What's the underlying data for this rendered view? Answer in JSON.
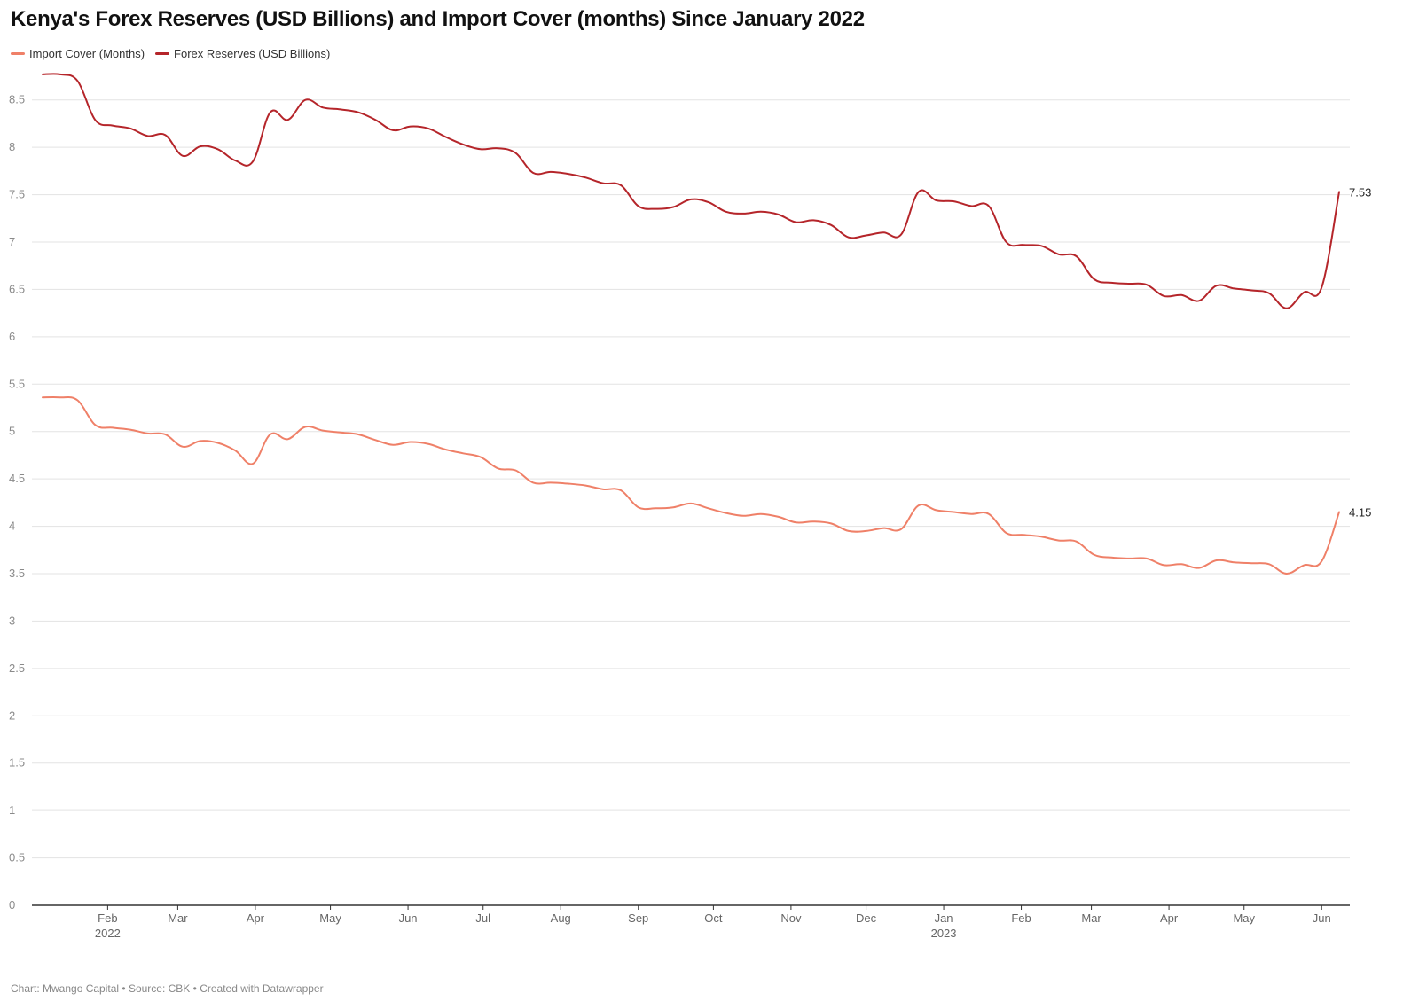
{
  "title": "Kenya's Forex Reserves (USD Billions) and Import Cover (months) Since January 2022",
  "footer": {
    "chart_by": "Chart: Mwango Capital",
    "source": "Source: CBK",
    "created_with": "Created with Datawrapper",
    "separator": " • "
  },
  "colors": {
    "import_cover": "#ef8068",
    "forex_reserves": "#b5252a",
    "grid": "#e3e3e3",
    "axis": "#333333"
  },
  "chart_data": {
    "type": "line",
    "title": "Kenya's Forex Reserves (USD Billions) and Import Cover (months) Since January 2022",
    "xlabel": "",
    "ylabel": "",
    "xlim": [
      "2022-01-06",
      "2023-06-15"
    ],
    "ylim": [
      0,
      8.75
    ],
    "yticks": [
      0,
      0.5,
      1,
      1.5,
      2,
      2.5,
      3,
      3.5,
      4,
      4.5,
      5,
      5.5,
      6,
      6.5,
      7,
      7.5,
      8,
      8.5
    ],
    "xticks": [
      {
        "date": "2022-02-01",
        "label": "Feb",
        "sublabel": "2022"
      },
      {
        "date": "2022-03-01",
        "label": "Mar",
        "sublabel": ""
      },
      {
        "date": "2022-04-01",
        "label": "Apr",
        "sublabel": ""
      },
      {
        "date": "2022-05-01",
        "label": "May",
        "sublabel": ""
      },
      {
        "date": "2022-06-01",
        "label": "Jun",
        "sublabel": ""
      },
      {
        "date": "2022-07-01",
        "label": "Jul",
        "sublabel": ""
      },
      {
        "date": "2022-08-01",
        "label": "Aug",
        "sublabel": ""
      },
      {
        "date": "2022-09-01",
        "label": "Sep",
        "sublabel": ""
      },
      {
        "date": "2022-10-01",
        "label": "Oct",
        "sublabel": ""
      },
      {
        "date": "2022-11-01",
        "label": "Nov",
        "sublabel": ""
      },
      {
        "date": "2022-12-01",
        "label": "Dec",
        "sublabel": ""
      },
      {
        "date": "2023-01-01",
        "label": "Jan",
        "sublabel": "2023"
      },
      {
        "date": "2023-02-01",
        "label": "Feb",
        "sublabel": ""
      },
      {
        "date": "2023-03-01",
        "label": "Mar",
        "sublabel": ""
      },
      {
        "date": "2023-04-01",
        "label": "Apr",
        "sublabel": ""
      },
      {
        "date": "2023-05-01",
        "label": "May",
        "sublabel": ""
      },
      {
        "date": "2023-06-01",
        "label": "Jun",
        "sublabel": ""
      }
    ],
    "grid": true,
    "legend": "top-left",
    "series": [
      {
        "name": "Import Cover (Months)",
        "color": "#ef8068",
        "end_label": "4.15",
        "x": [
          "2022-01-06",
          "2022-01-13",
          "2022-01-20",
          "2022-01-27",
          "2022-02-03",
          "2022-02-10",
          "2022-02-17",
          "2022-02-24",
          "2022-03-03",
          "2022-03-10",
          "2022-03-17",
          "2022-03-24",
          "2022-03-31",
          "2022-04-07",
          "2022-04-14",
          "2022-04-21",
          "2022-04-28",
          "2022-05-05",
          "2022-05-12",
          "2022-05-19",
          "2022-05-26",
          "2022-06-02",
          "2022-06-09",
          "2022-06-16",
          "2022-06-23",
          "2022-06-30",
          "2022-07-07",
          "2022-07-14",
          "2022-07-21",
          "2022-07-28",
          "2022-08-04",
          "2022-08-11",
          "2022-08-18",
          "2022-08-25",
          "2022-09-01",
          "2022-09-08",
          "2022-09-15",
          "2022-09-22",
          "2022-09-29",
          "2022-10-06",
          "2022-10-13",
          "2022-10-20",
          "2022-10-27",
          "2022-11-03",
          "2022-11-10",
          "2022-11-17",
          "2022-11-24",
          "2022-12-01",
          "2022-12-08",
          "2022-12-15",
          "2022-12-22",
          "2022-12-29",
          "2023-01-05",
          "2023-01-12",
          "2023-01-19",
          "2023-01-26",
          "2023-02-02",
          "2023-02-09",
          "2023-02-16",
          "2023-02-23",
          "2023-03-02",
          "2023-03-09",
          "2023-03-16",
          "2023-03-23",
          "2023-03-30",
          "2023-04-06",
          "2023-04-13",
          "2023-04-20",
          "2023-04-27",
          "2023-05-04",
          "2023-05-11",
          "2023-05-18",
          "2023-05-25",
          "2023-06-01",
          "2023-06-08"
        ],
        "values": [
          5.36,
          5.36,
          5.33,
          5.07,
          5.04,
          5.02,
          4.98,
          4.97,
          4.84,
          4.9,
          4.88,
          4.8,
          4.66,
          4.97,
          4.92,
          5.05,
          5.01,
          4.99,
          4.97,
          4.91,
          4.86,
          4.89,
          4.87,
          4.81,
          4.77,
          4.73,
          4.61,
          4.59,
          4.46,
          4.46,
          4.45,
          4.43,
          4.39,
          4.38,
          4.2,
          4.19,
          4.2,
          4.24,
          4.19,
          4.14,
          4.11,
          4.13,
          4.1,
          4.04,
          4.05,
          4.03,
          3.95,
          3.95,
          3.98,
          3.97,
          4.22,
          4.17,
          4.15,
          4.13,
          4.13,
          3.93,
          3.91,
          3.89,
          3.85,
          3.84,
          3.7,
          3.67,
          3.66,
          3.66,
          3.59,
          3.6,
          3.56,
          3.64,
          3.62,
          3.61,
          3.6,
          3.5,
          3.59,
          3.63,
          4.15
        ]
      },
      {
        "name": "Forex Reserves (USD Billions)",
        "color": "#b5252a",
        "end_label": "7.53",
        "x": [
          "2022-01-06",
          "2022-01-13",
          "2022-01-20",
          "2022-01-27",
          "2022-02-03",
          "2022-02-10",
          "2022-02-17",
          "2022-02-24",
          "2022-03-03",
          "2022-03-10",
          "2022-03-17",
          "2022-03-24",
          "2022-03-31",
          "2022-04-07",
          "2022-04-14",
          "2022-04-21",
          "2022-04-28",
          "2022-05-05",
          "2022-05-12",
          "2022-05-19",
          "2022-05-26",
          "2022-06-02",
          "2022-06-09",
          "2022-06-16",
          "2022-06-23",
          "2022-06-30",
          "2022-07-07",
          "2022-07-14",
          "2022-07-21",
          "2022-07-28",
          "2022-08-04",
          "2022-08-11",
          "2022-08-18",
          "2022-08-25",
          "2022-09-01",
          "2022-09-08",
          "2022-09-15",
          "2022-09-22",
          "2022-09-29",
          "2022-10-06",
          "2022-10-13",
          "2022-10-20",
          "2022-10-27",
          "2022-11-03",
          "2022-11-10",
          "2022-11-17",
          "2022-11-24",
          "2022-12-01",
          "2022-12-08",
          "2022-12-15",
          "2022-12-22",
          "2022-12-29",
          "2023-01-05",
          "2023-01-12",
          "2023-01-19",
          "2023-01-26",
          "2023-02-02",
          "2023-02-09",
          "2023-02-16",
          "2023-02-23",
          "2023-03-02",
          "2023-03-09",
          "2023-03-16",
          "2023-03-23",
          "2023-03-30",
          "2023-04-06",
          "2023-04-13",
          "2023-04-20",
          "2023-04-27",
          "2023-05-04",
          "2023-05-11",
          "2023-05-18",
          "2023-05-25",
          "2023-06-01",
          "2023-06-08"
        ],
        "values": [
          8.77,
          8.77,
          8.7,
          8.29,
          8.23,
          8.2,
          8.12,
          8.13,
          7.91,
          8.01,
          7.98,
          7.86,
          7.85,
          8.37,
          8.29,
          8.5,
          8.42,
          8.4,
          8.37,
          8.29,
          8.18,
          8.22,
          8.2,
          8.11,
          8.03,
          7.98,
          7.99,
          7.94,
          7.73,
          7.74,
          7.72,
          7.68,
          7.62,
          7.6,
          7.38,
          7.35,
          7.37,
          7.45,
          7.42,
          7.32,
          7.3,
          7.32,
          7.29,
          7.21,
          7.23,
          7.18,
          7.05,
          7.07,
          7.1,
          7.08,
          7.53,
          7.44,
          7.43,
          7.38,
          7.38,
          7.0,
          6.97,
          6.96,
          6.87,
          6.85,
          6.61,
          6.57,
          6.56,
          6.55,
          6.43,
          6.44,
          6.38,
          6.54,
          6.51,
          6.49,
          6.46,
          6.3,
          6.47,
          6.52,
          7.53
        ]
      }
    ]
  }
}
